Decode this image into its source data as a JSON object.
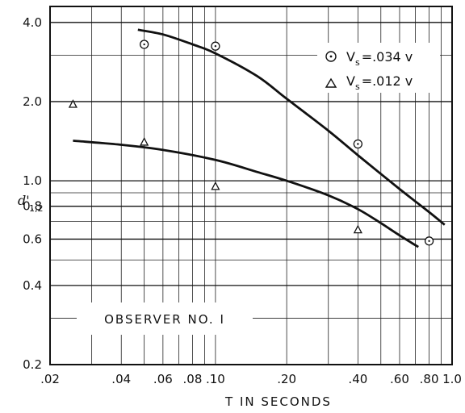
{
  "chart_data": {
    "type": "scatter",
    "x_scale": "log",
    "y_scale": "log",
    "xlim": [
      0.02,
      1.0
    ],
    "ylim": [
      0.2,
      4.6
    ],
    "x_ticks": [
      0.02,
      0.04,
      0.06,
      0.08,
      0.1,
      0.2,
      0.4,
      0.6,
      0.8,
      1.0
    ],
    "x_tick_labels": [
      ".02",
      ".04",
      ".06",
      ".08",
      ".10",
      ".20",
      ".40",
      ".60",
      ".80",
      "1.0"
    ],
    "y_ticks": [
      0.2,
      0.4,
      0.6,
      0.8,
      1.0,
      2.0,
      4.0
    ],
    "y_tick_labels": [
      "0.2",
      "0.4",
      "0.6",
      "0.8",
      "1.0",
      "2.0",
      "4.0"
    ],
    "xlabel": "T IN SECONDS",
    "ylabel": "d'",
    "ylabel_sub": "1,2",
    "annotation": "OBSERVER NO. I",
    "grid": true,
    "legend_position": "top-right",
    "series": [
      {
        "name_main": "V",
        "name_sub": "s",
        "name_rest": "=.034 v",
        "marker": "circle-dot",
        "points": [
          [
            0.05,
            3.3
          ],
          [
            0.1,
            3.25
          ],
          [
            0.4,
            1.38
          ],
          [
            0.8,
            0.59
          ]
        ],
        "fit_curve": [
          [
            0.047,
            3.75
          ],
          [
            0.06,
            3.6
          ],
          [
            0.08,
            3.3
          ],
          [
            0.1,
            3.05
          ],
          [
            0.15,
            2.5
          ],
          [
            0.2,
            2.05
          ],
          [
            0.3,
            1.55
          ],
          [
            0.4,
            1.25
          ],
          [
            0.6,
            0.93
          ],
          [
            0.8,
            0.76
          ],
          [
            0.93,
            0.68
          ]
        ]
      },
      {
        "name_main": "V",
        "name_sub": "s",
        "name_rest": "=.012 v",
        "marker": "triangle",
        "points": [
          [
            0.025,
            1.95
          ],
          [
            0.05,
            1.4
          ],
          [
            0.1,
            0.95
          ],
          [
            0.4,
            0.65
          ]
        ],
        "fit_curve": [
          [
            0.025,
            1.42
          ],
          [
            0.04,
            1.37
          ],
          [
            0.06,
            1.31
          ],
          [
            0.1,
            1.2
          ],
          [
            0.15,
            1.08
          ],
          [
            0.2,
            1.0
          ],
          [
            0.3,
            0.88
          ],
          [
            0.4,
            0.78
          ],
          [
            0.5,
            0.69
          ],
          [
            0.6,
            0.62
          ],
          [
            0.72,
            0.56
          ]
        ]
      }
    ]
  }
}
